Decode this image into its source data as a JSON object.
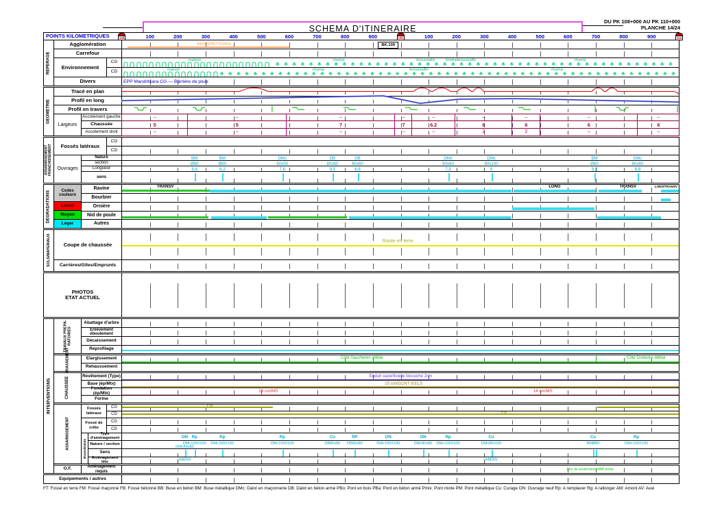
{
  "page": {
    "title": "SCHEMA  D'ITINERAIRE",
    "pk_range": "DU PK 108+000 AU PK 110+000",
    "planche": "PLANCHE 14/24",
    "points_kilometriques": "POINTS KILOMETRIQUES",
    "footer_legend": "FT: Fossé en terre   FM: Fossé maçonné   FB: Fossé bétonné   BB: Buse en béton   BM: Buse métallique   DMc: Dalot en maçonnerie   DB: Dalot en béton armé   PBo: Pont en bois   PBa: Pont en béton armé   Pmix: Pont mixte   PM: Pont métallique   Cu: Curage   ON: Ouvrage neuf   Rp: A remplacer   Rg: A rallonger   AM: Amont   AV: Aval"
  },
  "scale": {
    "km_markers": [
      {
        "m": 0,
        "label": "108"
      },
      {
        "m": 1000,
        "label": "109"
      },
      {
        "m": 2000,
        "label": "110"
      }
    ],
    "ticks": [
      {
        "m": 100,
        "label": "100"
      },
      {
        "m": 200,
        "label": "200"
      },
      {
        "m": 300,
        "label": "300"
      },
      {
        "m": 400,
        "label": "400"
      },
      {
        "m": 500,
        "label": "500"
      },
      {
        "m": 600,
        "label": "600"
      },
      {
        "m": 700,
        "label": "700"
      },
      {
        "m": 800,
        "label": "800"
      },
      {
        "m": 900,
        "label": "900"
      },
      {
        "m": 1100,
        "label": "100"
      },
      {
        "m": 1200,
        "label": "200"
      },
      {
        "m": 1300,
        "label": "300"
      },
      {
        "m": 1400,
        "label": "400"
      },
      {
        "m": 1500,
        "label": "500"
      },
      {
        "m": 1600,
        "label": "600"
      },
      {
        "m": 1700,
        "label": "700"
      },
      {
        "m": 1800,
        "label": "800"
      },
      {
        "m": 1900,
        "label": "900"
      }
    ]
  },
  "reperage": {
    "title": "REPERAGE",
    "cg": "CG",
    "cd": "CD",
    "agglomeration": {
      "label": "Agglomération",
      "bar": [
        20,
        600
      ],
      "city": {
        "m": 330,
        "text": "MANDRITSARA"
      },
      "bk": {
        "m": 955,
        "text": "BK.109"
      }
    },
    "carrefour": {
      "label": "Carrefour"
    },
    "environnement": {
      "label": "Environnement",
      "cg": {
        "huts": [
          0,
          540
        ],
        "fields": [
          540,
          2000
        ],
        "labels": [
          {
            "m": 261,
            "text": "maison"
          },
          {
            "m": 777,
            "text": "champ"
          },
          {
            "m": 1090,
            "text": "broussaille"
          },
          {
            "m": 1215,
            "text": "champbroussaille"
          },
          {
            "m": 1643,
            "text": "champ"
          }
        ]
      },
      "cd": {
        "huts": [
          0,
          340
        ],
        "fields": [
          340,
          2000
        ],
        "labels": [
          {
            "m": 185,
            "text": "maison"
          },
          {
            "m": 704,
            "text": "champ"
          },
          {
            "m": 1065,
            "text": "broussaille"
          },
          {
            "m": 1560,
            "text": "champ"
          }
        ]
      }
    },
    "divers": {
      "label": "Divers",
      "text": "EPP Mandritsara CG — Barrière de pluie"
    }
  },
  "geometrie": {
    "title": "GEOMETRIE",
    "trace_en_plan": "Tracé en plan",
    "profil_en_long": "Profil en long",
    "profil_en_travers": "Profil en travers",
    "trace_bumps": [
      [
        425,
        525
      ],
      [
        1048,
        1110
      ],
      [
        1118,
        1180
      ],
      [
        1205,
        1255
      ],
      [
        1262,
        1300
      ],
      [
        1688,
        1732
      ],
      [
        1740,
        1780
      ]
    ],
    "profil_points": [
      [
        0,
        20
      ],
      [
        940,
        13
      ],
      [
        1072,
        24
      ],
      [
        1208,
        18
      ],
      [
        1410,
        17
      ],
      [
        2000,
        22
      ]
    ],
    "travers_glyphs": [
      {
        "m": 69,
        "type": "u"
      },
      {
        "m": 278,
        "type": "u"
      },
      {
        "m": 541,
        "type": "bar"
      },
      {
        "m": 635,
        "type": "z"
      },
      {
        "m": 819,
        "type": "z"
      },
      {
        "m": 1040,
        "type": "z"
      },
      {
        "m": 1250,
        "type": "z"
      },
      {
        "m": 1446,
        "type": "z"
      },
      {
        "m": 1700,
        "type": "bar"
      },
      {
        "m": 1798,
        "type": "u"
      },
      {
        "m": 1995,
        "type": "bar"
      }
    ],
    "largeurs": {
      "label": "Largeurs",
      "gauche": "Accotement gauche",
      "chaussee": "Chaussée",
      "droit": "Accotement droit",
      "segments": [
        {
          "from": 0,
          "to": 235,
          "gauche": "–",
          "chaussee": "5",
          "droit": "–"
        },
        {
          "from": 235,
          "to": 590,
          "gauche": "–",
          "chaussee": "5",
          "droit": "–"
        },
        {
          "from": 590,
          "to": 980,
          "gauche": "–",
          "chaussee": "7",
          "droit": "–"
        },
        {
          "from": 980,
          "to": 1040,
          "gauche": "–",
          "chaussee": "7",
          "droit": "–"
        },
        {
          "from": 1040,
          "to": 1195,
          "gauche": "–",
          "chaussee": "6.2",
          "droit": "–"
        },
        {
          "from": 1195,
          "to": 1400,
          "gauche": "–",
          "chaussee": "6",
          "droit": "2"
        },
        {
          "from": 1400,
          "to": 1500,
          "gauche": "–",
          "chaussee": "6",
          "droit": "2"
        },
        {
          "from": 1500,
          "to": 1850,
          "gauche": "–",
          "chaussee": "6",
          "droit": "–"
        },
        {
          "from": 1850,
          "to": 2000,
          "gauche": "–",
          "chaussee": "6",
          "droit": "–"
        }
      ]
    }
  },
  "assainissement_franchissement": {
    "title": "ASSAINISSEMENT FRANCHISSEMENT",
    "fosses_lateraux": {
      "label": "Fossés latéraux",
      "cg": "CG",
      "cd": "CD"
    },
    "ouvrages": {
      "label": "Ouvrages",
      "nature_label": "Nature",
      "section_label": "section",
      "longueur_label": "Longueur",
      "sens_label": "sens",
      "items": [
        {
          "m": 260,
          "nature": "BM",
          "section": "Ø80",
          "longueur": "6,6"
        },
        {
          "m": 360,
          "nature": "BM",
          "section": "Ø80",
          "longueur": "6,3"
        },
        {
          "m": 575,
          "nature": "DMc",
          "section": "60x50",
          "longueur": "7,6"
        },
        {
          "m": 755,
          "nature": "DB",
          "section": "80x80",
          "longueur": "9,5"
        },
        {
          "m": 845,
          "nature": "DB",
          "section": "60x60",
          "longueur": "6,6"
        },
        {
          "m": 1170,
          "nature": "DMc",
          "section": "60x60",
          "longueur": "7,5"
        },
        {
          "m": 1325,
          "nature": "DMc",
          "section": "80x100",
          "longueur": "9"
        },
        {
          "m": 1695,
          "nature": "BM",
          "section": "Ø80",
          "longueur": "9,2"
        },
        {
          "m": 1850,
          "nature": "DMc",
          "section": "60x60",
          "longueur": "6,8"
        }
      ]
    }
  },
  "degradations": {
    "title": "DEGRADATIONS",
    "codes": {
      "header": "Codes couleurs",
      "lourd": "Lourd",
      "moyen": "Moyen",
      "leger": "Léger"
    },
    "rows": [
      {
        "label": "Ravine",
        "bars": [
          [
            0,
            315,
            "moyen"
          ],
          [
            315,
            1397,
            "leger"
          ],
          [
            1405,
            1700,
            "leger"
          ],
          [
            1710,
            1865,
            "leger"
          ],
          [
            1933,
            2000,
            "leger"
          ]
        ],
        "notes": [
          {
            "m": 155,
            "text": "TRANSV"
          },
          {
            "m": 1552,
            "text": "LONG"
          },
          {
            "m": 1815,
            "text": "TRANSV"
          },
          {
            "m": 1952,
            "text": "LONG/TRANSV",
            "small": true
          }
        ]
      },
      {
        "label": "Bourbier",
        "bars": [
          [
            1933,
            1968,
            "leger"
          ]
        ],
        "notes": []
      },
      {
        "label": "Ornière",
        "bars": [
          [
            1400,
            1695,
            "leger"
          ]
        ],
        "notes": []
      },
      {
        "label": "Nid de poule",
        "bars": [
          [
            0,
            310,
            "moyen"
          ],
          [
            320,
            519,
            "leger"
          ],
          [
            524,
            807,
            "moyen"
          ],
          [
            814,
            1395,
            "leger"
          ],
          [
            1705,
            1933,
            "leger"
          ]
        ],
        "notes": []
      },
      {
        "label": "Autres",
        "bars": [],
        "notes": []
      }
    ]
  },
  "sols": {
    "title": "SOLS/MATERIAUX",
    "coupe": {
      "label": "Coupe de chaussée",
      "note": {
        "m": 990,
        "text": "Route en terre"
      }
    },
    "carrieres": {
      "label": "Carrières/Gîtes/Emprunts"
    }
  },
  "photos": {
    "label_line1": "PHOTOS",
    "label_line2": "ETAT ACTUEL"
  },
  "interventions": {
    "title": "INTERVENTIONS",
    "travaux": {
      "label": "TRAVAUX PREPA- RATOIRES",
      "abattage": "Abattage d'arbre",
      "enlevement": "Enlèvement éboulement",
      "decaissement": "Décaissement",
      "reprofilage": "Reprofilage"
    },
    "terrassement": {
      "label": "TERRASSEMENT",
      "elargissement": "Elargissement",
      "rehaussement": "Rehaussement",
      "notes": [
        {
          "m": 860,
          "text": "Côté Gauche/en déblai"
        },
        {
          "m": 1880,
          "text": "Côté Droite/en déblai"
        }
      ]
    },
    "chaussee": {
      "label": "CHAUSSEE",
      "revetement": {
        "label": "Revêtement (Type)",
        "notes": [
          {
            "m": 1000,
            "text": "Enduit superficielle bicouche 2cm"
          }
        ]
      },
      "base": {
        "label": "Base (ép/Mtx)",
        "notes": [
          {
            "m": 1010,
            "text": "15 cm/GCNT 0/31,5"
          }
        ]
      },
      "fondation": {
        "label": "Fondation (ép/Mtx)",
        "notes": [
          {
            "m": 525,
            "text": "23 cm/MS"
          },
          {
            "m": 1510,
            "text": "14 cm/MS"
          }
        ]
      },
      "forme": {
        "label": "Forme"
      }
    },
    "assainissement": {
      "label": "ASSAINISSEMENT",
      "cg": "CG",
      "cd": "CD",
      "fosses_lateraux": {
        "label": "Fossés latéraux",
        "cg_segments": [
          [
            0,
            540
          ],
          [
            1705,
            2000
          ]
        ],
        "cd_segments": [
          [
            0,
            2000
          ]
        ],
        "cg_note": {
          "m": 315,
          "text": "FM"
        },
        "cd_note": {
          "m": 1370,
          "text": "FM"
        }
      },
      "fosse_crete": {
        "label": "Fossé de crête"
      },
      "buses": {
        "label": "Buses/Dalots",
        "type_label": "Type d'aménagement",
        "nature_label": "Nature / section",
        "sens_label": "Sens",
        "tete_label": "Aménagement tête",
        "items": [
          {
            "m": 225,
            "type": "ON",
            "nature": "DMc80x80",
            "line": 2,
            "tete": "AM/AV"
          },
          {
            "m": 260,
            "type": "Rp",
            "nature": "DMc100X100"
          },
          {
            "m": 360,
            "type": "Rp",
            "nature": "DMc100X100"
          },
          {
            "m": 575,
            "type": "Rp",
            "nature": "DMc100X100"
          },
          {
            "m": 755,
            "type": "Cu",
            "nature": "DB80x80"
          },
          {
            "m": 835,
            "type": "RP",
            "nature": "DB80x80"
          },
          {
            "m": 955,
            "type": "ON",
            "nature": "DMc100X100"
          },
          {
            "m": 1080,
            "type": "ON",
            "nature": "DMc80x80"
          },
          {
            "m": 1170,
            "type": "Rp",
            "nature": "DMc100X100"
          },
          {
            "m": 1325,
            "type": "Cu",
            "nature": "DMc80x100",
            "tete": "AM/AV"
          },
          {
            "m": 1690,
            "type": "Cu",
            "nature": "BMØ80",
            "double": true
          },
          {
            "m": 1845,
            "type": "Rp",
            "nature": "DMc100X100"
          }
        ]
      }
    },
    "of": {
      "box": "O.F.",
      "label": "Aménagement requis",
      "note": {
        "m": 1680,
        "text": "Mur de soutènement/BB droite"
      }
    },
    "equipements": {
      "label": "Equipements / autres"
    }
  },
  "colors": {
    "scale_blue": "#0000d0",
    "cyan_text": "#00a8cc",
    "cyan_bar": "#3cdcf0",
    "green_bar": "#28c828",
    "olive": "#a0a000",
    "yellow": "#e6e600",
    "orange": "#f0a060",
    "khaki": "#c0aa5a",
    "pink": "#f090a0",
    "violet": "#7a52cc",
    "red": "#e00000",
    "crimson": "#aa0040",
    "magenta_divider": "#aa0070",
    "title_magenta": "#e050e0",
    "env_icon": "#2ed88e",
    "code_lourd": "#ff0000",
    "code_moyen": "#00e000",
    "code_leger": "#00e8f8"
  }
}
